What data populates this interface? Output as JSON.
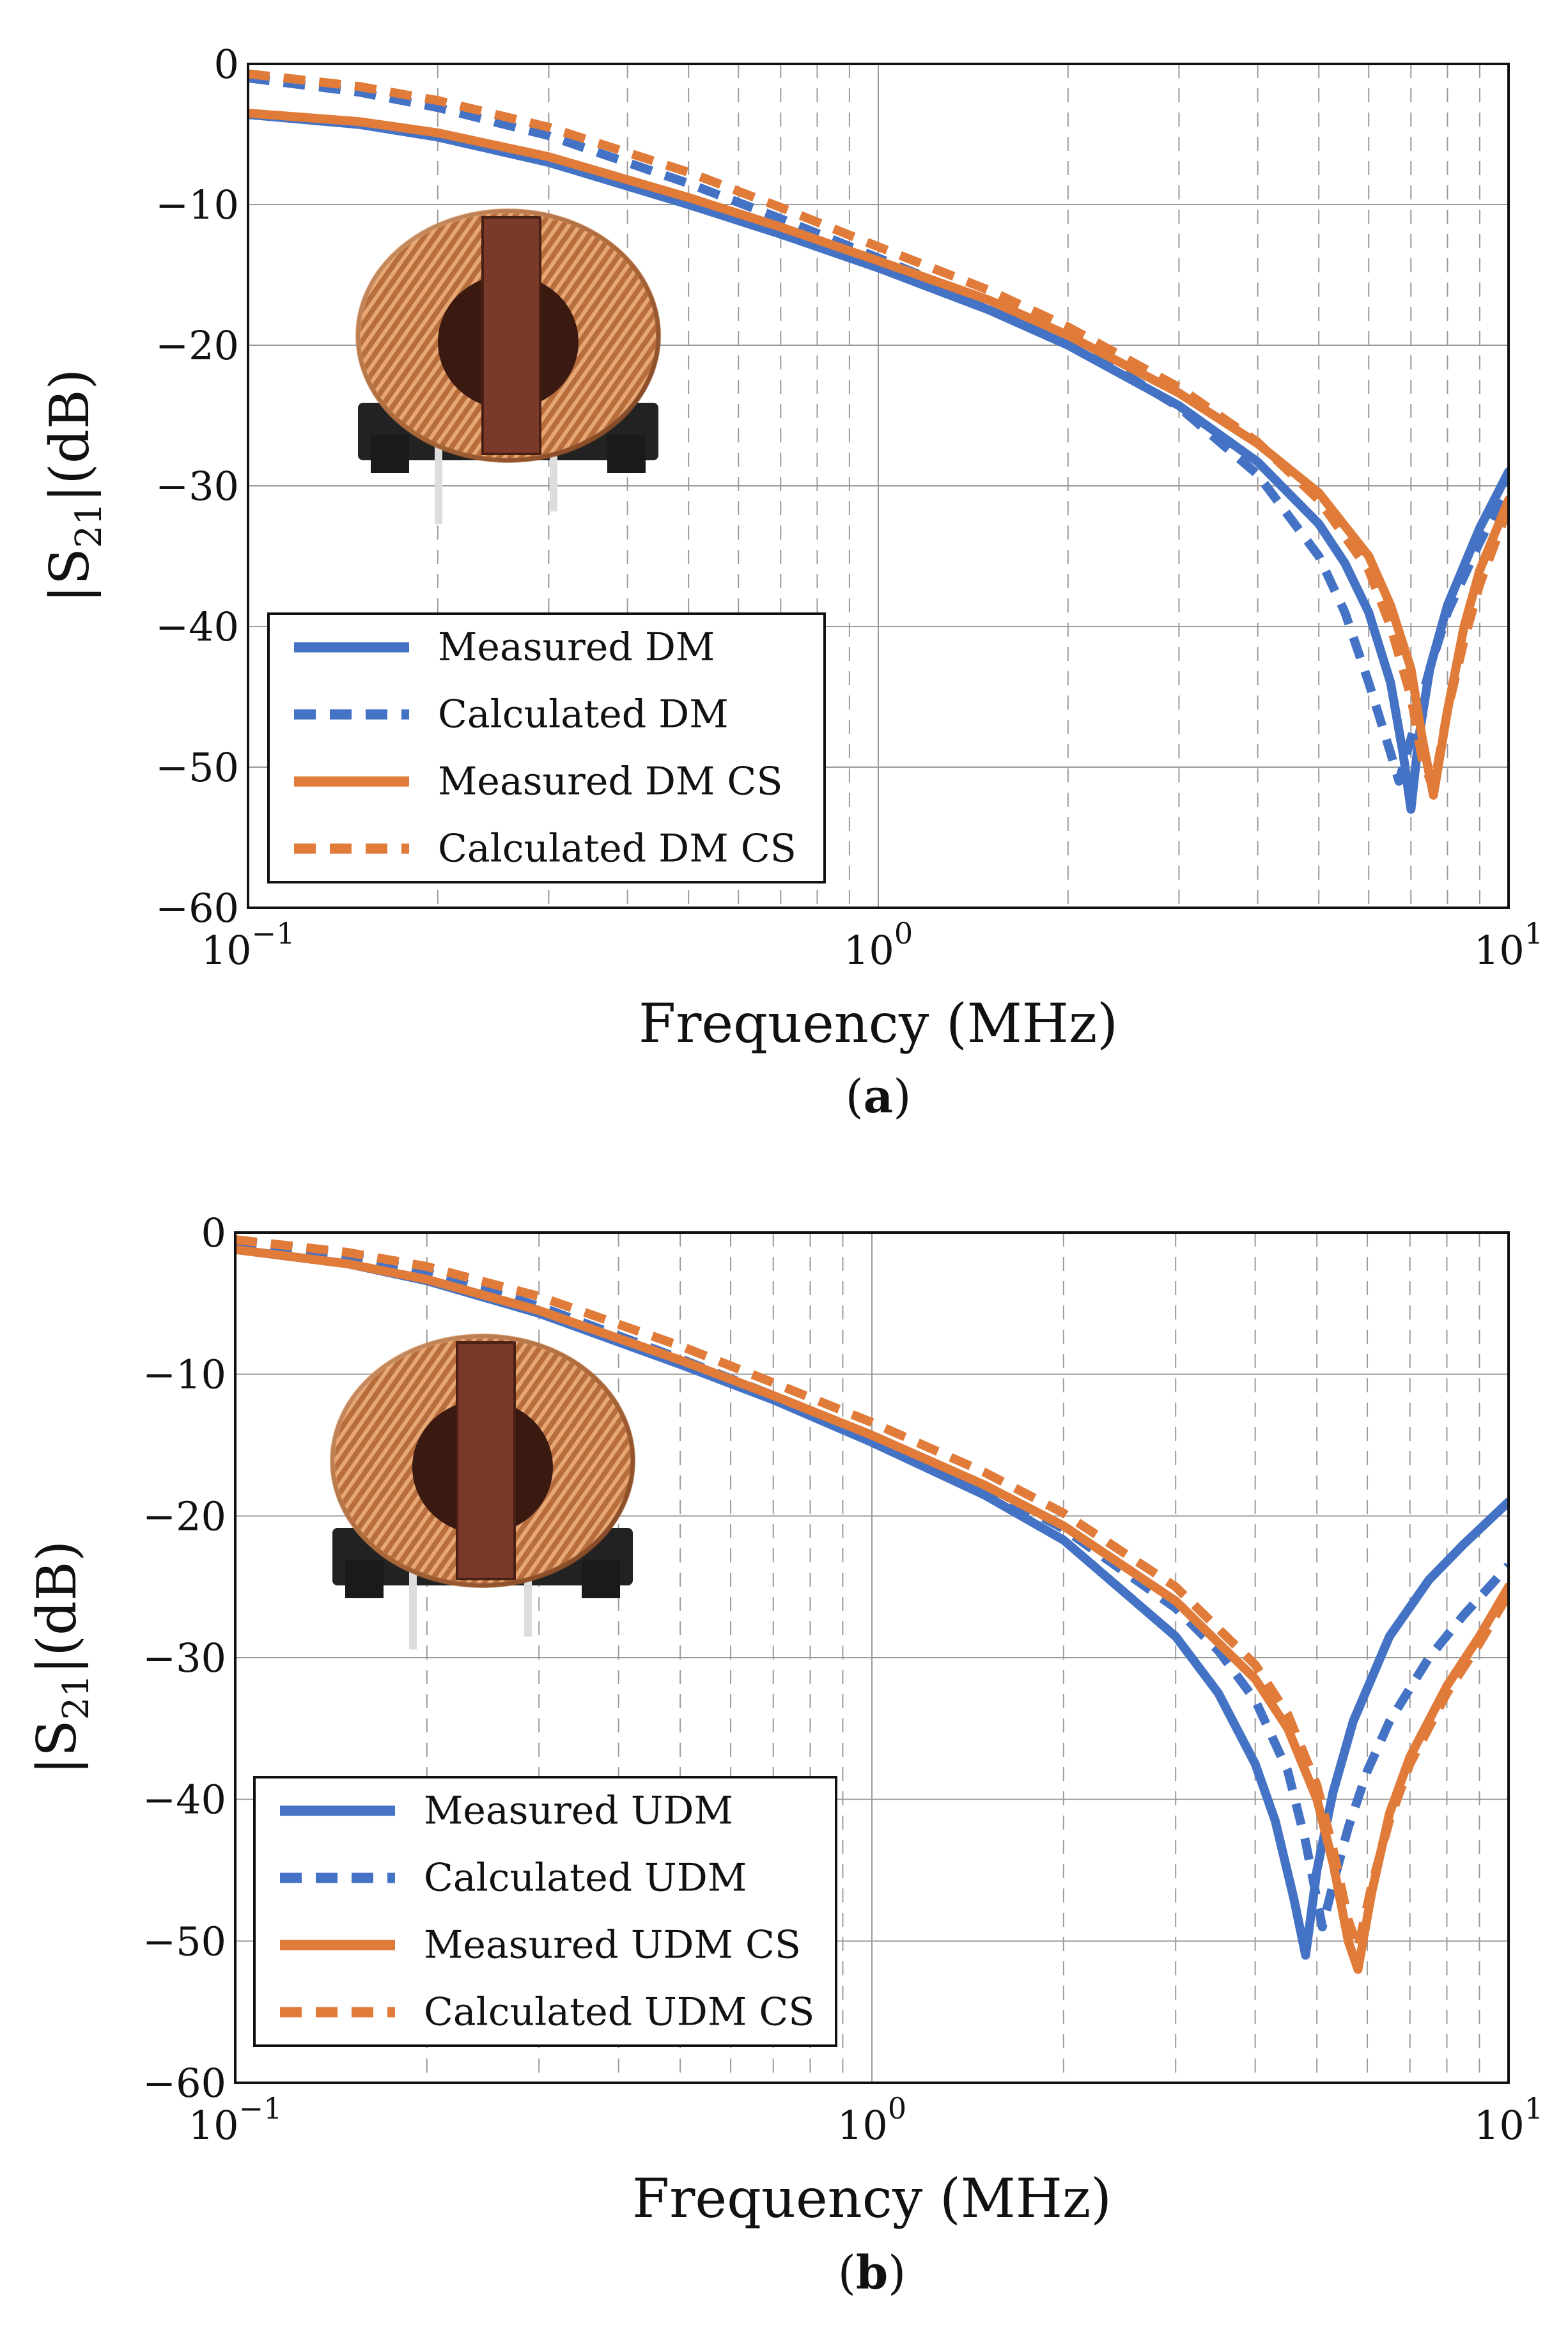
{
  "colors": {
    "blue": "#4472c4",
    "orange": "#e07b39"
  },
  "chart_data": [
    {
      "type": "line",
      "caption": "a",
      "xlabel": "Frequency (MHz)",
      "ylabel": "|S21|(dB)",
      "ylabel_main": "|S",
      "ylabel_sub": "21",
      "ylabel_unit": "|(dB)",
      "x_scale": "log",
      "xlim": [
        0.1,
        10
      ],
      "ylim": [
        -60,
        0
      ],
      "x_ticks": [
        {
          "base": "10",
          "exp": "−1"
        },
        {
          "base": "10",
          "exp": "0"
        },
        {
          "base": "10",
          "exp": "1"
        }
      ],
      "y_ticks": [
        "0",
        "−10",
        "−20",
        "−30",
        "−40",
        "−50",
        "−60"
      ],
      "grid": true,
      "legend_position": "lower-left",
      "inset_image": "common-mode-choke-photo",
      "series": [
        {
          "name": "Measured DM",
          "color": "#4472c4",
          "style": "solid",
          "x": [
            0.1,
            0.15,
            0.2,
            0.3,
            0.5,
            0.7,
            1,
            1.5,
            2,
            3,
            4,
            5,
            5.5,
            6,
            6.5,
            6.8,
            7,
            7.2,
            7.5,
            8,
            9,
            10
          ],
          "y": [
            -3.6,
            -4.3,
            -5.2,
            -7.0,
            -10.0,
            -12.1,
            -14.5,
            -17.5,
            -20.0,
            -24.3,
            -28.3,
            -32.7,
            -35.5,
            -39.0,
            -44.0,
            -49.0,
            -53.0,
            -48.0,
            -43.0,
            -38.5,
            -33.0,
            -29.0
          ]
        },
        {
          "name": "Calculated DM",
          "color": "#4472c4",
          "style": "dashed",
          "x": [
            0.1,
            0.15,
            0.2,
            0.3,
            0.5,
            0.7,
            1,
            1.5,
            2,
            3,
            4,
            5,
            5.5,
            6,
            6.5,
            6.7,
            6.9,
            7.2,
            7.5,
            8,
            9,
            10
          ],
          "y": [
            -1.0,
            -2.0,
            -3.1,
            -5.1,
            -8.5,
            -11.0,
            -13.8,
            -17.0,
            -19.6,
            -24.4,
            -29.2,
            -35.0,
            -39.0,
            -44.0,
            -49.0,
            -51.0,
            -49.0,
            -46.0,
            -43.0,
            -39.0,
            -34.0,
            -30.0
          ]
        },
        {
          "name": "Measured DM CS",
          "color": "#e07b39",
          "style": "solid",
          "x": [
            0.1,
            0.15,
            0.2,
            0.3,
            0.5,
            0.7,
            1,
            1.5,
            2,
            3,
            4,
            5,
            6,
            6.5,
            7,
            7.3,
            7.6,
            8,
            8.5,
            9,
            10
          ],
          "y": [
            -3.5,
            -4.1,
            -4.9,
            -6.6,
            -9.5,
            -11.6,
            -14.0,
            -16.8,
            -19.3,
            -23.4,
            -27.0,
            -30.5,
            -35.0,
            -38.5,
            -43.0,
            -48.0,
            -52.0,
            -46.0,
            -40.0,
            -36.0,
            -31.0
          ]
        },
        {
          "name": "Calculated DM CS",
          "color": "#e07b39",
          "style": "dashed",
          "x": [
            0.1,
            0.15,
            0.2,
            0.3,
            0.5,
            0.7,
            1,
            1.5,
            2,
            3,
            4,
            5,
            6,
            6.5,
            7,
            7.3,
            7.6,
            8,
            8.5,
            9,
            10
          ],
          "y": [
            -0.7,
            -1.6,
            -2.6,
            -4.5,
            -7.7,
            -10.2,
            -13.0,
            -16.1,
            -18.7,
            -23.0,
            -26.9,
            -31.0,
            -36.0,
            -40.0,
            -45.0,
            -49.5,
            -51.5,
            -46.0,
            -41.0,
            -37.0,
            -31.5
          ]
        }
      ]
    },
    {
      "type": "line",
      "caption": "b",
      "xlabel": "Frequency (MHz)",
      "ylabel": "|S21|(dB)",
      "ylabel_main": "|S",
      "ylabel_sub": "21",
      "ylabel_unit": "|(dB)",
      "x_scale": "log",
      "xlim": [
        0.1,
        10
      ],
      "ylim": [
        -60,
        0
      ],
      "x_ticks": [
        {
          "base": "10",
          "exp": "−1"
        },
        {
          "base": "10",
          "exp": "0"
        },
        {
          "base": "10",
          "exp": "1"
        }
      ],
      "y_ticks": [
        "0",
        "−10",
        "−20",
        "−30",
        "−40",
        "−50",
        "−60"
      ],
      "grid": true,
      "legend_position": "lower-left",
      "inset_image": "common-mode-choke-photo",
      "series": [
        {
          "name": "Measured UDM",
          "color": "#4472c4",
          "style": "solid",
          "x": [
            0.1,
            0.15,
            0.2,
            0.3,
            0.5,
            0.7,
            1,
            1.5,
            2,
            3,
            3.5,
            4,
            4.3,
            4.6,
            4.8,
            5.0,
            5.3,
            5.7,
            6.5,
            7.5,
            8.5,
            10
          ],
          "y": [
            -1.2,
            -2.2,
            -3.4,
            -5.7,
            -9.3,
            -11.8,
            -14.8,
            -18.5,
            -21.7,
            -28.5,
            -32.5,
            -37.5,
            -41.5,
            -47.0,
            -51.0,
            -45.0,
            -39.5,
            -34.5,
            -28.5,
            -24.5,
            -22.0,
            -19.0
          ]
        },
        {
          "name": "Calculated UDM",
          "color": "#4472c4",
          "style": "dashed",
          "x": [
            0.1,
            0.15,
            0.2,
            0.3,
            0.5,
            0.7,
            1,
            1.5,
            2,
            3,
            3.5,
            4,
            4.5,
            4.8,
            5.1,
            5.3,
            5.6,
            6,
            6.5,
            7.5,
            8.5,
            10
          ],
          "y": [
            -0.6,
            -1.6,
            -2.8,
            -5.2,
            -8.9,
            -11.5,
            -14.3,
            -17.9,
            -20.9,
            -26.5,
            -29.5,
            -33.0,
            -38.0,
            -43.0,
            -49.0,
            -46.0,
            -42.0,
            -38.0,
            -34.5,
            -30.0,
            -27.0,
            -23.5
          ]
        },
        {
          "name": "Measured UDM CS",
          "color": "#e07b39",
          "style": "solid",
          "x": [
            0.1,
            0.15,
            0.2,
            0.3,
            0.5,
            0.7,
            1,
            1.5,
            2,
            3,
            4,
            4.5,
            5,
            5.3,
            5.6,
            5.8,
            6.1,
            6.5,
            7,
            8,
            9,
            10
          ],
          "y": [
            -1.2,
            -2.2,
            -3.3,
            -5.5,
            -9.0,
            -11.5,
            -14.3,
            -17.8,
            -20.7,
            -26.0,
            -31.5,
            -35.0,
            -40.0,
            -44.5,
            -50.0,
            -52.0,
            -46.5,
            -41.0,
            -37.0,
            -32.0,
            -28.5,
            -25.0
          ]
        },
        {
          "name": "Calculated UDM CS",
          "color": "#e07b39",
          "style": "dashed",
          "x": [
            0.1,
            0.15,
            0.2,
            0.3,
            0.5,
            0.7,
            1,
            1.5,
            2,
            3,
            4,
            4.5,
            5,
            5.3,
            5.6,
            5.8,
            6.1,
            6.5,
            7,
            8,
            9,
            10
          ],
          "y": [
            -0.5,
            -1.4,
            -2.4,
            -4.5,
            -8.0,
            -10.6,
            -13.4,
            -16.9,
            -19.8,
            -25.0,
            -30.5,
            -34.0,
            -39.0,
            -43.5,
            -48.5,
            -50.5,
            -46.0,
            -41.5,
            -37.5,
            -32.5,
            -29.0,
            -25.5
          ]
        }
      ]
    }
  ]
}
